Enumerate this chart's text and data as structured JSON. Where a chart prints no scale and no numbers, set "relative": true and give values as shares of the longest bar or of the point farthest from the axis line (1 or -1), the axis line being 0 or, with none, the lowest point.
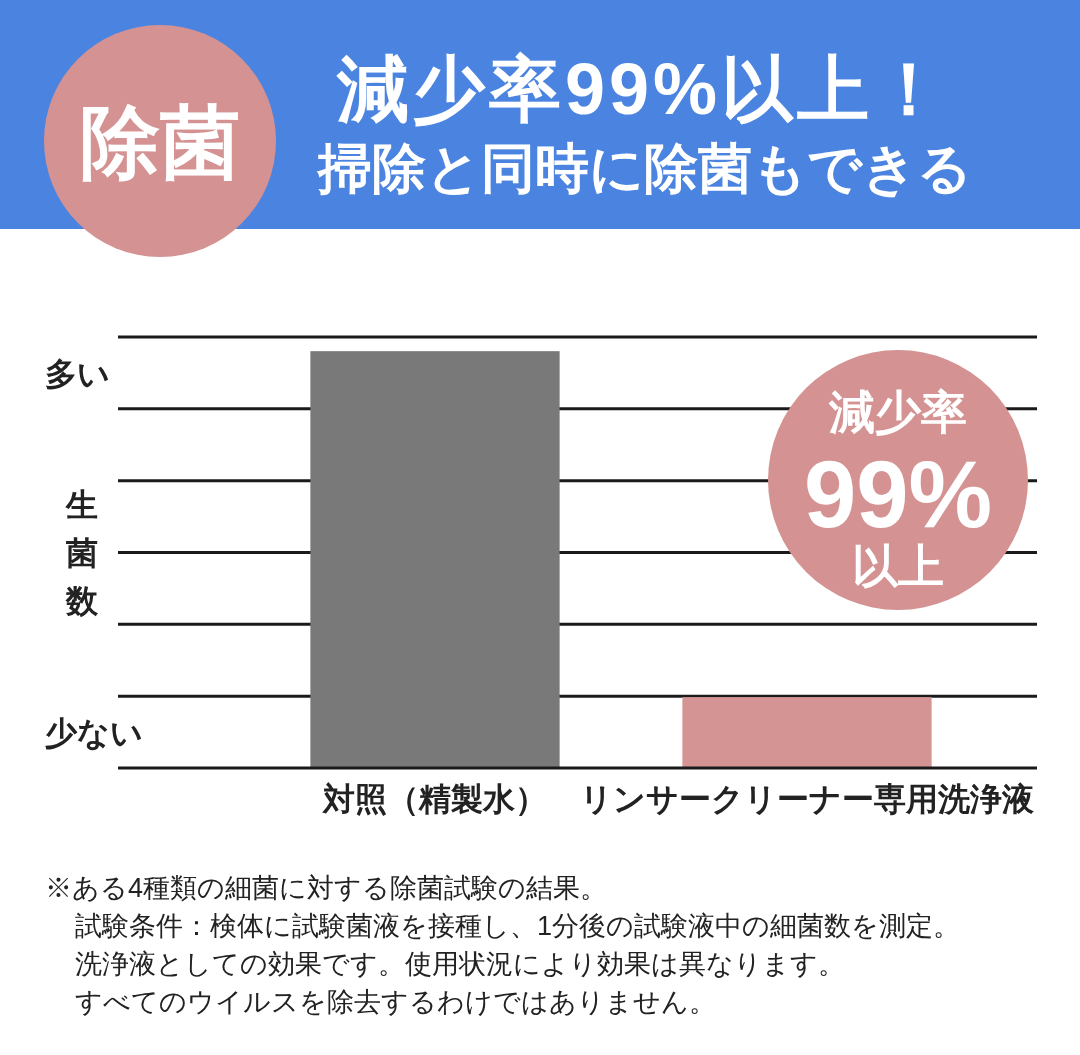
{
  "chart_data": {
    "type": "bar",
    "title": "減少率99%以上！",
    "subtitle": "掃除と同時に除菌もできる",
    "ylabel": "生菌数",
    "categories": [
      "対照（精製水）",
      "リンサークリーナー専用洗浄液"
    ],
    "values": [
      1,
      0.17
    ],
    "colors": [
      "#797979",
      "#d49494"
    ],
    "relative": true,
    "grid": true,
    "annotations": [
      "多い",
      "少ない",
      "除菌",
      "減少率",
      "99%",
      "以上",
      "※ある4種類の細菌に対する除菌試験の結果。",
      "試験条件：検体に試験菌液を接種し、1分後の試験液中の細菌数を測定。",
      "洗浄液としての効果です。使用状況により効果は異なります。",
      "すべてのウイルスを除去するわけではありません。"
    ]
  }
}
